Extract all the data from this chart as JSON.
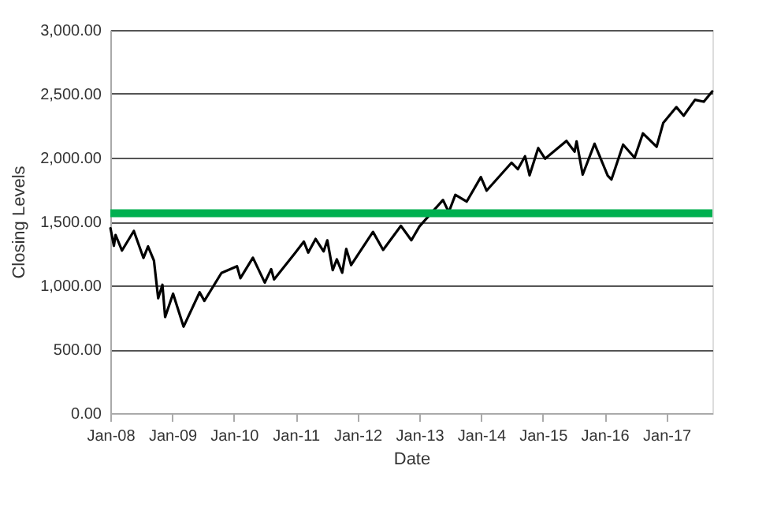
{
  "chart_data": {
    "type": "line",
    "xlabel": "Date",
    "ylabel": "Closing  Levels",
    "x": [
      "2008-01-02",
      "2008-01-22",
      "2008-02-01",
      "2008-03-10",
      "2008-05-19",
      "2008-07-15",
      "2008-08-11",
      "2008-09-15",
      "2008-10-10",
      "2008-11-04",
      "2008-11-20",
      "2009-01-06",
      "2009-03-09",
      "2009-06-12",
      "2009-07-10",
      "2009-10-19",
      "2010-01-19",
      "2010-02-08",
      "2010-04-23",
      "2010-07-02",
      "2010-08-09",
      "2010-08-26",
      "2010-12-31",
      "2011-02-18",
      "2011-03-16",
      "2011-04-29",
      "2011-06-15",
      "2011-07-07",
      "2011-08-08",
      "2011-09-01",
      "2011-10-03",
      "2011-10-27",
      "2011-11-25",
      "2012-04-02",
      "2012-06-01",
      "2012-09-14",
      "2012-11-15",
      "2013-01-02",
      "2013-05-21",
      "2013-06-24",
      "2013-08-02",
      "2013-10-08",
      "2013-12-31",
      "2014-02-03",
      "2014-06-30",
      "2014-08-07",
      "2014-09-18",
      "2014-10-15",
      "2014-12-05",
      "2015-01-15",
      "2015-05-21",
      "2015-07-08",
      "2015-07-20",
      "2015-08-25",
      "2015-11-03",
      "2016-01-20",
      "2016-02-11",
      "2016-04-20",
      "2016-06-27",
      "2016-08-15",
      "2016-11-04",
      "2016-12-13",
      "2017-03-01",
      "2017-04-13",
      "2017-06-19",
      "2017-08-10",
      "2017-09-29"
    ],
    "series": [
      {
        "color": "#000000",
        "values": [
          1447,
          1310,
          1395,
          1273,
          1426,
          1215,
          1305,
          1193,
          899,
          1005,
          752,
          935,
          677,
          946,
          879,
          1097,
          1150,
          1056,
          1217,
          1022,
          1127,
          1047,
          1258,
          1343,
          1257,
          1364,
          1266,
          1353,
          1119,
          1204,
          1099,
          1285,
          1159,
          1419,
          1278,
          1466,
          1353,
          1462,
          1669,
          1573,
          1709,
          1656,
          1848,
          1742,
          1960,
          1910,
          2011,
          1862,
          2075,
          1992,
          2131,
          2047,
          2128,
          1867,
          2109,
          1859,
          1829,
          2102,
          2000,
          2190,
          2085,
          2271,
          2396,
          2329,
          2453,
          2438,
          2519
        ]
      }
    ],
    "xlim": [
      "2008-01-01",
      "2017-09-30"
    ],
    "xticks": [
      {
        "value": "2008-01-01",
        "label": "Jan-08"
      },
      {
        "value": "2009-01-01",
        "label": "Jan-09"
      },
      {
        "value": "2010-01-01",
        "label": "Jan-10"
      },
      {
        "value": "2011-01-01",
        "label": "Jan-11"
      },
      {
        "value": "2012-01-01",
        "label": "Jan-12"
      },
      {
        "value": "2013-01-01",
        "label": "Jan-13"
      },
      {
        "value": "2014-01-01",
        "label": "Jan-14"
      },
      {
        "value": "2015-01-01",
        "label": "Jan-15"
      },
      {
        "value": "2016-01-01",
        "label": "Jan-16"
      },
      {
        "value": "2017-01-01",
        "label": "Jan-17"
      }
    ],
    "ylim": [
      0,
      3000
    ],
    "yticks": [
      {
        "value": 0,
        "label": "0.00"
      },
      {
        "value": 500,
        "label": "500.00"
      },
      {
        "value": 1000,
        "label": "1,000.00"
      },
      {
        "value": 1500,
        "label": "1,500.00"
      },
      {
        "value": 2000,
        "label": "2,000.00"
      },
      {
        "value": 2500,
        "label": "2,500.00"
      },
      {
        "value": 3000,
        "label": "3,000.00"
      }
    ],
    "ref_lines": [
      {
        "axis": "y",
        "value": 1565,
        "color": "#00b050",
        "line_style": "solid"
      }
    ],
    "grid": "y",
    "marker": "none",
    "line_style": "solid"
  }
}
